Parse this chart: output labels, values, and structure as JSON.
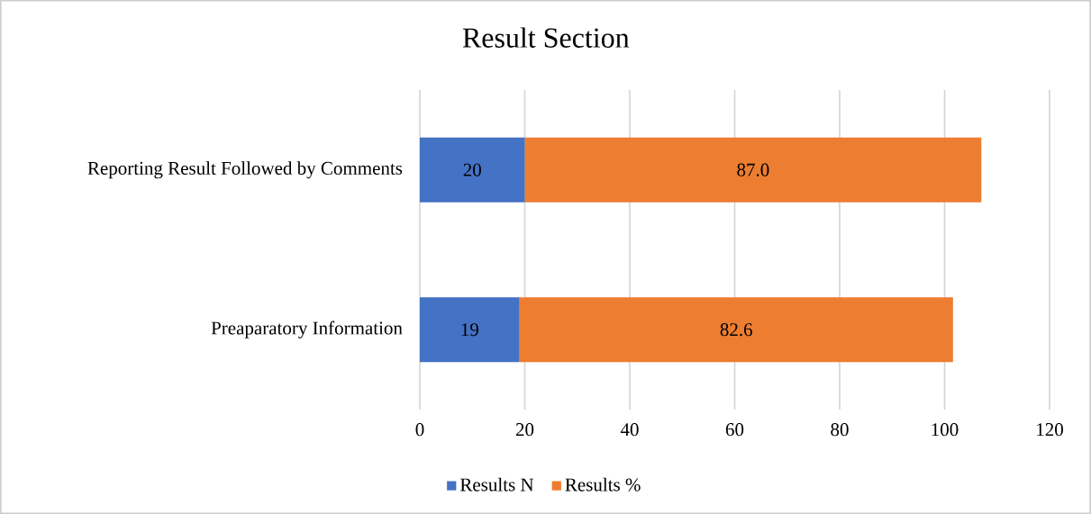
{
  "chart_data": {
    "type": "bar",
    "orientation": "horizontal",
    "stacked": true,
    "title": "Result Section",
    "categories": [
      "Reporting Result Followed by Comments",
      "Preaparatory Information"
    ],
    "series": [
      {
        "name": "Results N",
        "color": "#4472c4",
        "values": [
          20,
          19
        ],
        "value_labels": [
          "20",
          "19"
        ]
      },
      {
        "name": "Results %",
        "color": "#ed7d31",
        "values": [
          87.0,
          82.6
        ],
        "value_labels": [
          "87.0",
          "82.6"
        ]
      }
    ],
    "xlim": [
      0,
      120
    ],
    "xticks": [
      0,
      20,
      40,
      60,
      80,
      100,
      120
    ],
    "grid": "x",
    "legend": "bottom"
  }
}
